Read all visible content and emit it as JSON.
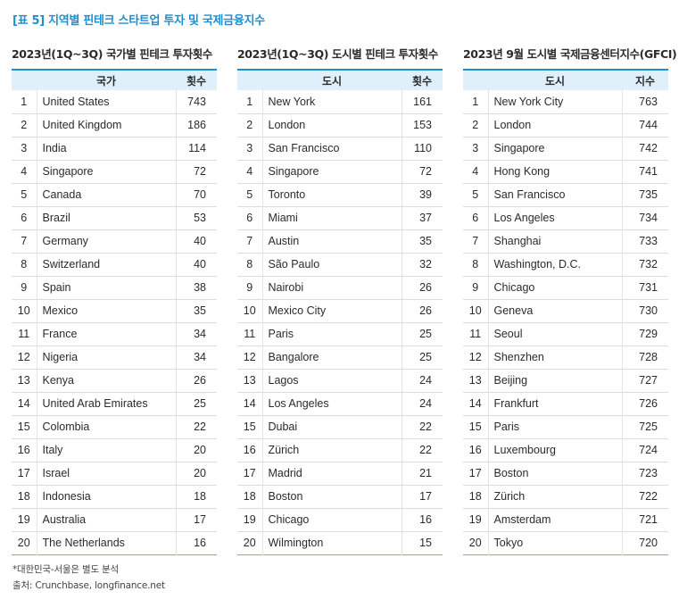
{
  "title": "[표 5] 지역별 핀테크 스타트업 투자 및 국제금융지수",
  "tables": [
    {
      "heading": "2023년(1Q~3Q) 국가별 핀테크 투자횟수",
      "col_name": "국가",
      "col_value": "횟수",
      "rows": [
        {
          "rank": "1",
          "name": "United States",
          "value": "743"
        },
        {
          "rank": "2",
          "name": "United Kingdom",
          "value": "186"
        },
        {
          "rank": "3",
          "name": "India",
          "value": "114"
        },
        {
          "rank": "4",
          "name": "Singapore",
          "value": "72"
        },
        {
          "rank": "5",
          "name": "Canada",
          "value": "70"
        },
        {
          "rank": "6",
          "name": "Brazil",
          "value": "53"
        },
        {
          "rank": "7",
          "name": "Germany",
          "value": "40"
        },
        {
          "rank": "8",
          "name": "Switzerland",
          "value": "40"
        },
        {
          "rank": "9",
          "name": "Spain",
          "value": "38"
        },
        {
          "rank": "10",
          "name": "Mexico",
          "value": "35"
        },
        {
          "rank": "11",
          "name": "France",
          "value": "34"
        },
        {
          "rank": "12",
          "name": "Nigeria",
          "value": "34"
        },
        {
          "rank": "13",
          "name": "Kenya",
          "value": "26"
        },
        {
          "rank": "14",
          "name": "United Arab Emirates",
          "value": "25"
        },
        {
          "rank": "15",
          "name": "Colombia",
          "value": "22"
        },
        {
          "rank": "16",
          "name": "Italy",
          "value": "20"
        },
        {
          "rank": "17",
          "name": "Israel",
          "value": "20"
        },
        {
          "rank": "18",
          "name": "Indonesia",
          "value": "18"
        },
        {
          "rank": "19",
          "name": "Australia",
          "value": "17"
        },
        {
          "rank": "20",
          "name": "The Netherlands",
          "value": "16"
        }
      ]
    },
    {
      "heading": "2023년(1Q~3Q) 도시별 핀테크 투자횟수",
      "col_name": "도시",
      "col_value": "횟수",
      "rows": [
        {
          "rank": "1",
          "name": "New York",
          "value": "161"
        },
        {
          "rank": "2",
          "name": "London",
          "value": "153"
        },
        {
          "rank": "3",
          "name": "San Francisco",
          "value": "110"
        },
        {
          "rank": "4",
          "name": "Singapore",
          "value": "72"
        },
        {
          "rank": "5",
          "name": "Toronto",
          "value": "39"
        },
        {
          "rank": "6",
          "name": "Miami",
          "value": "37"
        },
        {
          "rank": "7",
          "name": "Austin",
          "value": "35"
        },
        {
          "rank": "8",
          "name": "São Paulo",
          "value": "32"
        },
        {
          "rank": "9",
          "name": "Nairobi",
          "value": "26"
        },
        {
          "rank": "10",
          "name": "Mexico City",
          "value": "26"
        },
        {
          "rank": "11",
          "name": "Paris",
          "value": "25"
        },
        {
          "rank": "12",
          "name": "Bangalore",
          "value": "25"
        },
        {
          "rank": "13",
          "name": "Lagos",
          "value": "24"
        },
        {
          "rank": "14",
          "name": "Los Angeles",
          "value": "24"
        },
        {
          "rank": "15",
          "name": "Dubai",
          "value": "22"
        },
        {
          "rank": "16",
          "name": "Zürich",
          "value": "22"
        },
        {
          "rank": "17",
          "name": "Madrid",
          "value": "21"
        },
        {
          "rank": "18",
          "name": "Boston",
          "value": "17"
        },
        {
          "rank": "19",
          "name": "Chicago",
          "value": "16"
        },
        {
          "rank": "20",
          "name": "Wilmington",
          "value": "15"
        }
      ]
    },
    {
      "heading": "2023년 9월 도시별 국제금융센터지수(GFCI)",
      "col_name": "도시",
      "col_value": "지수",
      "rows": [
        {
          "rank": "1",
          "name": "New York City",
          "value": "763"
        },
        {
          "rank": "2",
          "name": "London",
          "value": "744"
        },
        {
          "rank": "3",
          "name": "Singapore",
          "value": "742"
        },
        {
          "rank": "4",
          "name": "Hong Kong",
          "value": "741"
        },
        {
          "rank": "5",
          "name": "San Francisco",
          "value": "735"
        },
        {
          "rank": "6",
          "name": "Los Angeles",
          "value": "734"
        },
        {
          "rank": "7",
          "name": "Shanghai",
          "value": "733"
        },
        {
          "rank": "8",
          "name": "Washington, D.C.",
          "value": "732"
        },
        {
          "rank": "9",
          "name": "Chicago",
          "value": "731"
        },
        {
          "rank": "10",
          "name": "Geneva",
          "value": "730"
        },
        {
          "rank": "11",
          "name": "Seoul",
          "value": "729"
        },
        {
          "rank": "12",
          "name": "Shenzhen",
          "value": "728"
        },
        {
          "rank": "13",
          "name": "Beijing",
          "value": "727"
        },
        {
          "rank": "14",
          "name": "Frankfurt",
          "value": "726"
        },
        {
          "rank": "15",
          "name": "Paris",
          "value": "725"
        },
        {
          "rank": "16",
          "name": "Luxembourg",
          "value": "724"
        },
        {
          "rank": "17",
          "name": "Boston",
          "value": "723"
        },
        {
          "rank": "18",
          "name": "Zürich",
          "value": "722"
        },
        {
          "rank": "19",
          "name": "Amsterdam",
          "value": "721"
        },
        {
          "rank": "20",
          "name": "Tokyo",
          "value": "720"
        }
      ]
    }
  ],
  "footnote": "*대한민국-서울은 별도 분석",
  "source": "출처: Crunchbase, longfinance.net",
  "colors": {
    "accent": "#1d8fd1",
    "header_bg": "#dff0fb"
  }
}
